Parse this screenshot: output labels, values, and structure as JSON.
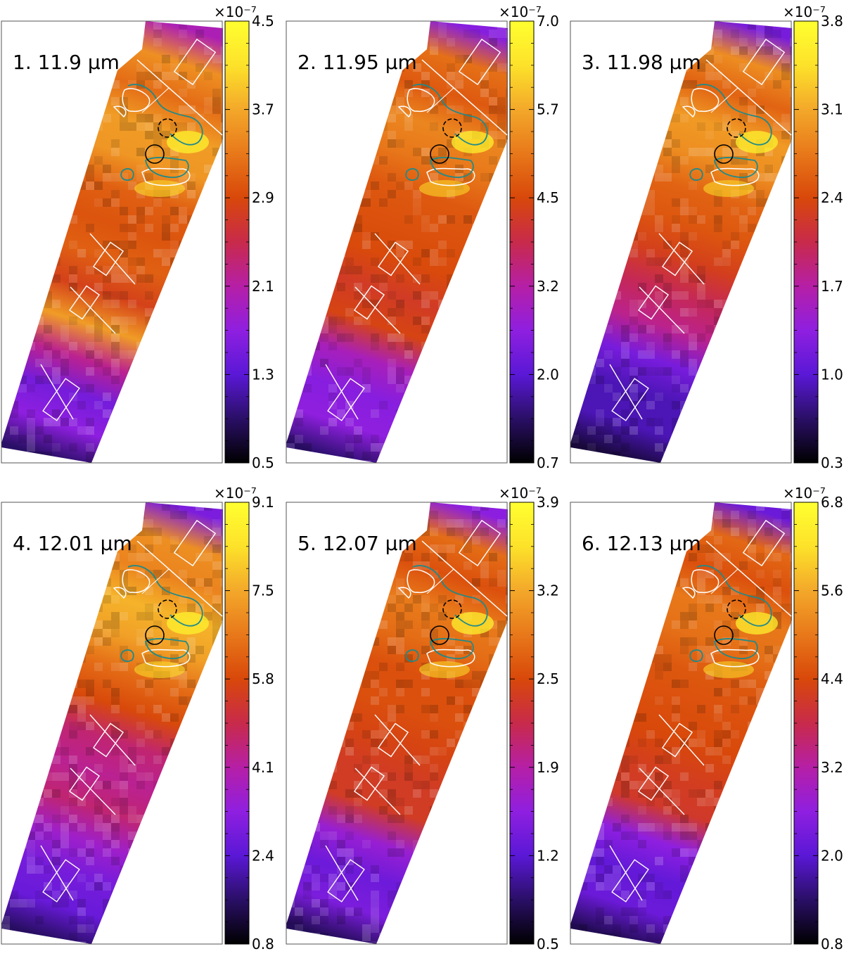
{
  "chart_data": [
    {
      "type": "heatmap",
      "panel_label": "1. 11.9 µm",
      "colorbar_exponent": "×10⁻⁷",
      "colorbar_ticks": [
        "0.5",
        "1.3",
        "2.1",
        "2.9",
        "3.7",
        "4.5"
      ],
      "colorbar_range": [
        0.5,
        4.5
      ],
      "colormap": [
        "#000000",
        "#2a0f66",
        "#5a18d6",
        "#8f1fe0",
        "#b61fa6",
        "#c82a4a",
        "#d8480a",
        "#e8781a",
        "#f3a82a",
        "#fde22a",
        "#ffff30"
      ],
      "intensity_bands": [
        2.0,
        3.5,
        3.2,
        3.6,
        3.55,
        3.1,
        3.0,
        3.1,
        2.8,
        3.6,
        2.2,
        1.5,
        1.7,
        0.9
      ],
      "contours": {
        "white": "emission contours",
        "teal": "emission contours"
      }
    },
    {
      "type": "heatmap",
      "panel_label": "2. 11.95 µm",
      "colorbar_exponent": "×10⁻⁷",
      "colorbar_ticks": [
        "0.7",
        "2.0",
        "3.2",
        "4.5",
        "5.7",
        "7.0"
      ],
      "colorbar_range": [
        0.7,
        7.0
      ],
      "colormap": [
        "#000000",
        "#2a0f66",
        "#5a18d6",
        "#8f1fe0",
        "#b61fa6",
        "#c82a4a",
        "#d8480a",
        "#e8781a",
        "#f3a82a",
        "#fde22a",
        "#ffff30"
      ],
      "intensity_bands": [
        2.5,
        5.0,
        4.7,
        5.3,
        5.1,
        4.7,
        4.6,
        4.5,
        4.2,
        4.4,
        3.0,
        2.5,
        2.6,
        1.4
      ]
    },
    {
      "type": "heatmap",
      "panel_label": "3. 11.98 µm",
      "colorbar_exponent": "×10⁻⁷",
      "colorbar_ticks": [
        "0.3",
        "1.0",
        "1.7",
        "2.4",
        "3.1",
        "3.8"
      ],
      "colorbar_range": [
        0.3,
        3.8
      ],
      "colormap": [
        "#000000",
        "#2a0f66",
        "#5a18d6",
        "#8f1fe0",
        "#b61fa6",
        "#c82a4a",
        "#d8480a",
        "#e8781a",
        "#f3a82a",
        "#fde22a",
        "#ffff30"
      ],
      "intensity_bands": [
        1.2,
        2.9,
        2.6,
        3.0,
        2.9,
        2.6,
        2.5,
        2.3,
        2.0,
        1.8,
        1.2,
        0.9,
        0.9,
        0.5
      ]
    },
    {
      "type": "heatmap",
      "panel_label": "4. 12.01 µm",
      "colorbar_exponent": "×10⁻⁷",
      "colorbar_ticks": [
        "0.8",
        "2.4",
        "4.1",
        "5.8",
        "7.5",
        "9.1"
      ],
      "colorbar_range": [
        0.8,
        9.1
      ],
      "colormap": [
        "#000000",
        "#2a0f66",
        "#5a18d6",
        "#8f1fe0",
        "#b61fa6",
        "#c82a4a",
        "#d8480a",
        "#e8781a",
        "#f3a82a",
        "#fde22a",
        "#ffff30"
      ],
      "intensity_bands": [
        3.0,
        7.0,
        6.8,
        7.6,
        7.3,
        6.4,
        5.8,
        4.6,
        4.3,
        4.6,
        3.6,
        2.9,
        2.7,
        1.6
      ]
    },
    {
      "type": "heatmap",
      "panel_label": "5. 12.07 µm",
      "colorbar_exponent": "×10⁻⁷",
      "colorbar_ticks": [
        "0.5",
        "1.2",
        "1.9",
        "2.5",
        "3.2",
        "3.9"
      ],
      "colorbar_range": [
        0.5,
        3.9
      ],
      "colormap": [
        "#000000",
        "#2a0f66",
        "#5a18d6",
        "#8f1fe0",
        "#b61fa6",
        "#c82a4a",
        "#d8480a",
        "#e8781a",
        "#f3a82a",
        "#fde22a",
        "#ffff30"
      ],
      "intensity_bands": [
        1.5,
        2.8,
        2.6,
        2.9,
        2.8,
        2.6,
        2.6,
        2.5,
        2.4,
        2.4,
        1.6,
        1.3,
        1.4,
        0.8
      ]
    },
    {
      "type": "heatmap",
      "panel_label": "6. 12.13 µm",
      "colorbar_exponent": "×10⁻⁷",
      "colorbar_ticks": [
        "0.8",
        "2.0",
        "3.2",
        "4.4",
        "5.6",
        "6.8"
      ],
      "colorbar_range": [
        0.8,
        6.8
      ],
      "colormap": [
        "#000000",
        "#2a0f66",
        "#5a18d6",
        "#8f1fe0",
        "#b61fa6",
        "#c82a4a",
        "#d8480a",
        "#e8781a",
        "#f3a82a",
        "#fde22a",
        "#ffff30"
      ],
      "intensity_bands": [
        2.2,
        4.8,
        4.5,
        5.0,
        4.9,
        4.6,
        4.5,
        4.4,
        4.2,
        4.1,
        2.6,
        2.1,
        2.2,
        1.3
      ]
    }
  ],
  "overlay_colors": {
    "boxes": "#ffffff",
    "white_contours": "#ffffff",
    "teal_contours": "#1f8a8a",
    "circles": "#000000"
  }
}
